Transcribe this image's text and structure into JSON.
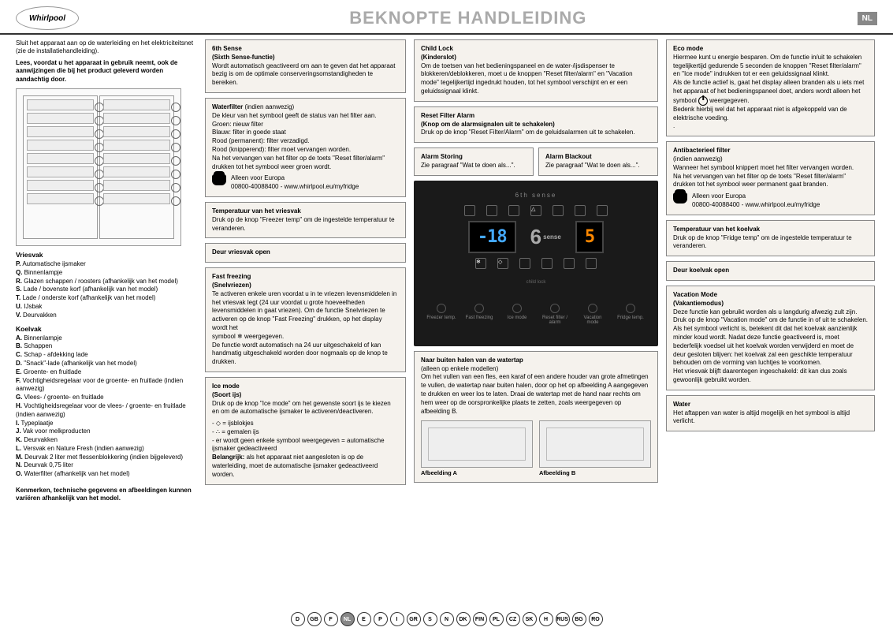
{
  "header": {
    "logo_text": "Whirlpool",
    "title": "BEKNOPTE HANDLEIDING",
    "lang_badge": "NL"
  },
  "intro": {
    "text1": "Sluit het apparaat aan op de waterleiding en het elektriciteitsnet (zie de installatiehandleiding).",
    "text2": "Lees, voordat u het apparaat in gebruik neemt, ook de aanwijzingen die bij het product geleverd worden aandachtig door."
  },
  "vriesvak": {
    "title": "Vriesvak",
    "items": [
      "Automatische ijsmaker",
      "Binnenlampje",
      "Glazen schappen / roosters (afhankelijk van het model)",
      "Lade / bovenste korf (afhankelijk van het model)",
      "Lade / onderste korf (afhankelijk van het model)",
      "IJsbak",
      "Deurvakken"
    ],
    "letters": [
      "P.",
      "Q.",
      "R.",
      "S.",
      "T.",
      "U.",
      "V."
    ]
  },
  "koelvak": {
    "title": "Koelvak",
    "items": [
      "Binnenlampje",
      "Schappen",
      "Schap - afdekking lade",
      "\"Snack\"-lade (afhankelijk van het model)",
      "Groente- en fruitlade",
      "Vochtigheidsregelaar voor de groente- en fruitlade (indien aanwezig)",
      "Vlees- / groente- en fruitlade",
      "Vochtigheidsregelaar voor de vlees- / groente- en fruitlade (indien aanwezig)",
      "Typeplaatje",
      "Vak voor melkproducten",
      "Deurvakken",
      "Versvak en Nature Fresh (indien aanwezig)",
      "Deurvak 2 liter met flessenblokkering (indien bijgeleverd)",
      "Deurvak 0,75 liter",
      "Waterfilter (afhankelijk van het model)"
    ],
    "letters": [
      "A.",
      "B.",
      "C.",
      "D.",
      "E.",
      "F.",
      "G.",
      "H.",
      "I.",
      "J.",
      "K.",
      "L.",
      "M.",
      "N.",
      "O."
    ]
  },
  "footnote": "Kenmerken, technische gegevens en afbeeldingen kunnen variëren afhankelijk van het model.",
  "boxes": {
    "sixth_sense": {
      "title": "6th Sense",
      "sub": "(Sixth Sense-functie)",
      "body": "Wordt automatisch geactiveerd om aan te geven dat het apparaat bezig is om de optimale conserveringsomstandigheden te bereiken."
    },
    "waterfilter": {
      "title": "Waterfilter",
      "title_extra": " (indien aanwezig)",
      "body": "De kleur van het symbool geeft de status van het filter aan.\nGroen: nieuw filter\nBlauw: filter in goede staat\nRood (permanent): filter verzadigd.\nRood (knipperend): filter moet vervangen worden.\nNa het vervangen van het filter op de toets \"Reset filter/alarm\" drukken tot het symbool weer groen wordt.",
      "phone": "Alleen voor Europa\n00800-40088400 - www.whirlpool.eu/myfridge"
    },
    "temp_vriesvak": {
      "title": "Temperatuur van het vriesvak",
      "body": "Druk op de knop \"Freezer temp\" om de ingestelde temperatuur te veranderen."
    },
    "deur_vriesvak": {
      "title": "Deur vriesvak open"
    },
    "fast_freezing": {
      "title": "Fast freezing",
      "sub": "(Snelvriezen)",
      "body": "Te activeren enkele uren voordat u in te vriezen levensmiddelen in het vriesvak legt (24 uur voordat u grote hoeveelheden levensmiddelen in gaat vriezen). Om de functie Snelvriezen te activeren op de knop \"Fast Freezing\" drukken, op het display wordt het",
      "body2": "weergegeven.\nDe functie wordt automatisch na 24 uur uitgeschakeld of kan handmatig uitgeschakeld worden door nogmaals op de knop te drukken.",
      "symbol_label": "symbool"
    },
    "ice_mode": {
      "title": "Ice mode",
      "sub": "(Soort ijs)",
      "body": "Druk op de knop \"Ice mode\" om het gewenste soort ijs te kiezen en om de automatische ijsmaker te activeren/deactiveren.",
      "opt1": "= ijsblokjes",
      "opt2": "= gemalen ijs",
      "opt3": "- er wordt geen enkele symbool weergegeven = automatische ijsmaker gedeactiveerd",
      "bold": "Belangrijk:",
      "bold_text": " als het apparaat niet aangesloten is op de waterleiding, moet de automatische ijsmaker gedeactiveerd worden."
    },
    "child_lock": {
      "title": "Child Lock",
      "sub": "(Kinderslot)",
      "body": "Om de toetsen van het bedieningspaneel en de water-/ijsdispenser te blokkeren/deblokkeren, moet u de knoppen \"Reset filter/alarm\" en \"Vacation mode\" tegelijkertijd ingedrukt houden, tot het symbool verschijnt en er een geluidssignaal klinkt."
    },
    "reset_filter": {
      "title": "Reset Filter Alarm",
      "sub": "(Knop om de alarmsignalen uit te schakelen)",
      "body": "Druk op de knop \"Reset Filter/Alarm\" om de geluidsalarmen uit te schakelen."
    },
    "alarm_storing": {
      "title": "Alarm Storing",
      "body": "Zie paragraaf \"Wat te doen als...\"."
    },
    "alarm_blackout": {
      "title": "Alarm Blackout",
      "body": "Zie paragraaf \"Wat te doen als...\"."
    },
    "watertap": {
      "title": "Naar buiten halen van de watertap",
      "title_extra": "(alleen op enkele modellen)",
      "body": "Om het vullen van een fles, een karaf of een andere houder van grote afmetingen te vullen, de watertap naar buiten halen, door op het op afbeelding A aangegeven te drukken en weer los te laten. Draai de watertap met de hand naar rechts om hem weer op de oorspronkelijke plaats te zetten, zoals weergegeven op afbeelding B.",
      "img_a": "Afbeelding A",
      "img_b": "Afbeelding B"
    },
    "eco_mode": {
      "title": "Eco mode",
      "body": "Hiermee kunt u energie besparen. Om de functie in/uit te schakelen tegelijkertijd gedurende 5 seconden de knoppen \"Reset filter/alarm\" en \"Ice mode\" indrukken tot er een geluidssignaal klinkt.\nAls de functie actief is, gaat het display alleen branden als u iets met het apparaat of het bedieningspaneel doet, anders wordt alleen het",
      "body2": "weergegeven.\nBedenk hierbij wel dat het apparaat niet is afgekoppeld van de elektrische voeding.\n.",
      "symbol_label": "symbool"
    },
    "antibact": {
      "title": "Antibacterieel filter",
      "title_extra": "(indien aanwezig)",
      "body": "Wanneer het symbool knippert moet het filter vervangen worden.\nNa het vervangen van het filter op de toets \"Reset filter/alarm\" drukken tot het symbool weer permanent gaat branden.",
      "phone": "Alleen voor Europa\n00800-40088400 - www.whirlpool.eu/myfridge"
    },
    "temp_koelvak": {
      "title": "Temperatuur van het koelvak",
      "body": "Druk op de knop \"Fridge temp\" om de ingestelde temperatuur te veranderen."
    },
    "deur_koelvak": {
      "title": "Deur koelvak open"
    },
    "vacation": {
      "title": "Vacation Mode",
      "sub": "(Vakantiemodus)",
      "body": "Deze functie kan gebruikt worden als u langdurig afwezig zult zijn. Druk op de knop \"Vacation mode\" om de functie in of uit te schakelen. Als het symbool verlicht is, betekent dit dat het koelvak aanzienlijk minder koud wordt. Nadat deze functie geactiveerd is, moet bederfelijk voedsel uit het koelvak worden verwijderd en moet de deur gesloten blijven: het koelvak zal een geschikte temperatuur behouden om de vorming van luchtjes te voorkomen.\nHet vriesvak blijft daarentegen ingeschakeld: dit kan dus zoals gewoonlijk gebruikt worden."
    },
    "water": {
      "title": "Water",
      "body": "Het aftappen van water is altijd mogelijk en het symbool is altijd verlicht."
    }
  },
  "panel": {
    "brand": "6th sense",
    "freezer_temp": "-18",
    "fridge_temp": "5",
    "six_label": "6",
    "buttons": [
      "Freezer temp.",
      "Fast freezing",
      "Ice mode",
      "Reset filter / alarm",
      "Vacation mode",
      "Fridge temp."
    ],
    "childlock": "child lock"
  },
  "footer_langs": [
    "D",
    "GB",
    "F",
    "NL",
    "E",
    "P",
    "I",
    "GR",
    "S",
    "N",
    "DK",
    "FIN",
    "PL",
    "CZ",
    "SK",
    "H",
    "RUS",
    "BG",
    "RO"
  ],
  "footer_active": "NL"
}
